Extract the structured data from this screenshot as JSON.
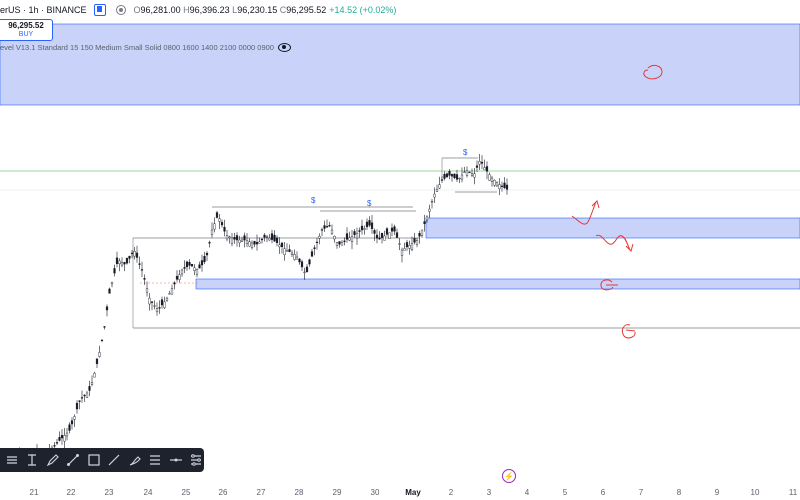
{
  "header": {
    "symbol": "erUS · 1h · BINANCE",
    "ohlc": {
      "o_label": "O",
      "o": "96,281.00",
      "h_label": "H",
      "h": "96,396.23",
      "l_label": "L",
      "l": "96,230.15",
      "c_label": "C",
      "c": "96,295.52",
      "change": "+14.52 (+0.02%)"
    }
  },
  "price_box": {
    "price": "96,295.52",
    "side": "BUY"
  },
  "indicator": {
    "label": "evel V13.1 Standard 15 150 Medium Small Solid 0800 1600 1400 2100 0000 0900"
  },
  "x_axis": {
    "labels": [
      "21",
      "22",
      "23",
      "24",
      "25",
      "26",
      "27",
      "28",
      "29",
      "30",
      "May",
      "2",
      "3",
      "4",
      "5",
      "6",
      "7",
      "8",
      "9",
      "10",
      "11"
    ]
  },
  "annotations": {
    "liquidity_marks": [
      "$",
      "$",
      "$"
    ]
  },
  "toolbar": {
    "tools": [
      "align-icon",
      "text-cursor-icon",
      "pencil-icon",
      "line-icon",
      "rectangle-icon",
      "trendline-icon",
      "brush-icon",
      "list-icon",
      "horizontal-line-icon",
      "settings-list-icon"
    ]
  },
  "colors": {
    "zone_fill": "#c7d2fb",
    "zone_border": "#2962ff",
    "candle": "#131722",
    "drawing_red": "#e53935",
    "green_line": "#4caf50",
    "text_blue": "#2962ff"
  },
  "chart_data": {
    "type": "candlestick",
    "x": [
      "21",
      "22",
      "23",
      "24",
      "25",
      "26",
      "27",
      "28",
      "29",
      "30",
      "May",
      "2",
      "3"
    ],
    "close": [
      93200,
      93400,
      95200,
      94200,
      94400,
      95100,
      94800,
      94600,
      94900,
      94700,
      95600,
      96500,
      96295.52
    ],
    "note_zones": [
      "upper blue zone",
      "middle blue zone",
      "lower blue zone"
    ]
  }
}
